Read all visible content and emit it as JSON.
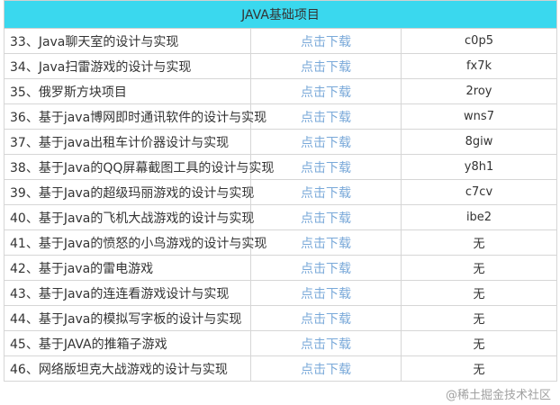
{
  "header": "JAVA基础项目",
  "link_label": "点击下载",
  "rows": [
    {
      "name": "33、Java聊天室的设计与实现",
      "code": "c0p5"
    },
    {
      "name": "34、Java扫雷游戏的设计与实现",
      "code": "fx7k"
    },
    {
      "name": "35、俄罗斯方块项目",
      "code": "2roy"
    },
    {
      "name": "36、基于java博网即时通讯软件的设计与实现",
      "code": "wns7"
    },
    {
      "name": "37、基于java出租车计价器设计与实现",
      "code": "8giw"
    },
    {
      "name": "38、基于Java的QQ屏幕截图工具的设计与实现",
      "code": "y8h1"
    },
    {
      "name": "39、基于Java的超级玛丽游戏的设计与实现",
      "code": "c7cv"
    },
    {
      "name": "40、基于Java的飞机大战游戏的设计与实现",
      "code": "ibe2"
    },
    {
      "name": "41、基于Java的愤怒的小鸟游戏的设计与实现",
      "code": "无"
    },
    {
      "name": "42、基于java的雷电游戏",
      "code": "无"
    },
    {
      "name": "43、基于Java的连连看游戏设计与实现",
      "code": "无"
    },
    {
      "name": "44、基于Java的模拟写字板的设计与实现",
      "code": "无"
    },
    {
      "name": "45、基于JAVA的推箱子游戏",
      "code": "无"
    },
    {
      "name": "46、网络版坦克大战游戏的设计与实现",
      "code": "无"
    }
  ],
  "watermark": "@稀土掘金技术社区"
}
